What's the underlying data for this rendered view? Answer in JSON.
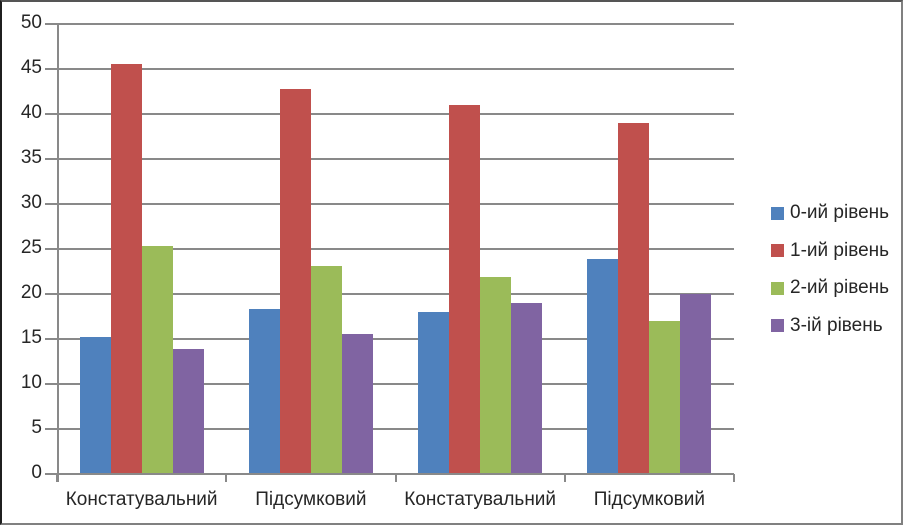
{
  "chart_data": {
    "type": "bar",
    "title": "",
    "xlabel": "",
    "ylabel": "",
    "categories": [
      "Констатувальний",
      "Підсумковий",
      "Констатувальний",
      "Підсумковий"
    ],
    "series": [
      {
        "name": "0-ий рівень",
        "color": "#4F81BD",
        "values": [
          15.2,
          18.3,
          18.0,
          23.9
        ]
      },
      {
        "name": "1-ий рівень",
        "color": "#C0504D",
        "values": [
          45.6,
          42.8,
          41.0,
          39.0
        ]
      },
      {
        "name": "2-ий рівень",
        "color": "#9BBB59",
        "values": [
          25.3,
          23.1,
          21.9,
          17.0
        ]
      },
      {
        "name": "3-ій рівень",
        "color": "#8064A2",
        "values": [
          13.9,
          15.6,
          19.0,
          20.0
        ]
      }
    ],
    "ylim": [
      0,
      50
    ],
    "ytick_step": 5,
    "ytick_labels": [
      "0",
      "5",
      "10",
      "15",
      "20",
      "25",
      "30",
      "35",
      "40",
      "45",
      "50"
    ],
    "grid": true,
    "legend_position": "right",
    "gridline_color": "#898989",
    "axis_text_color": "#262626",
    "plot_background": "#ffffff"
  }
}
